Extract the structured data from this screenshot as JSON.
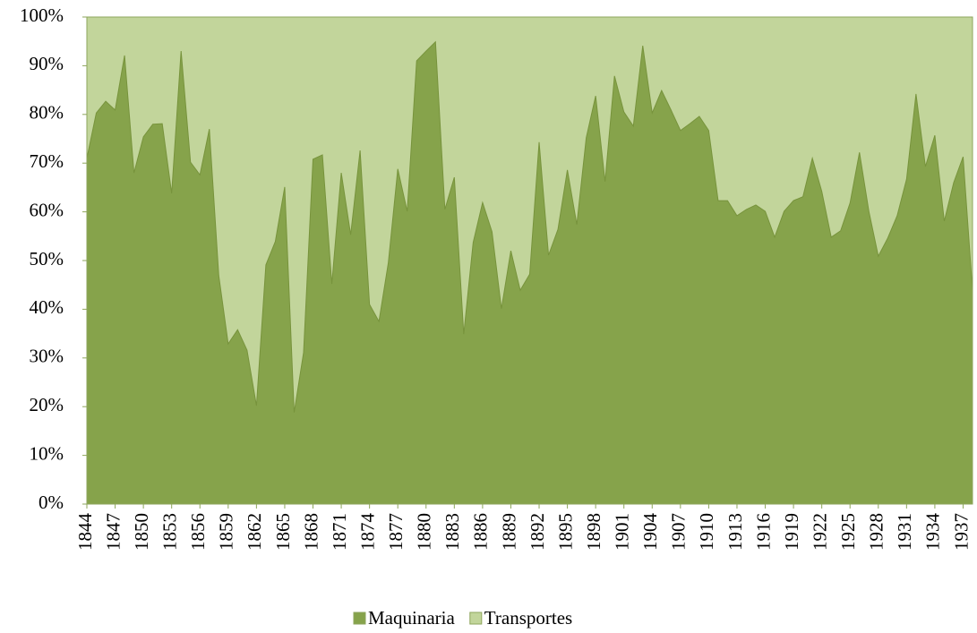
{
  "chart_data": {
    "type": "stacked-area-100",
    "x": [
      1844,
      1845,
      1846,
      1847,
      1848,
      1849,
      1850,
      1851,
      1852,
      1853,
      1854,
      1855,
      1856,
      1857,
      1858,
      1859,
      1860,
      1861,
      1862,
      1863,
      1864,
      1865,
      1866,
      1867,
      1868,
      1869,
      1870,
      1871,
      1872,
      1873,
      1874,
      1875,
      1876,
      1877,
      1878,
      1879,
      1880,
      1881,
      1882,
      1883,
      1884,
      1885,
      1886,
      1887,
      1888,
      1889,
      1890,
      1891,
      1892,
      1893,
      1894,
      1895,
      1896,
      1897,
      1898,
      1899,
      1900,
      1901,
      1902,
      1903,
      1904,
      1905,
      1906,
      1907,
      1908,
      1909,
      1910,
      1911,
      1912,
      1913,
      1914,
      1915,
      1916,
      1917,
      1918,
      1919,
      1920,
      1921,
      1922,
      1923,
      1924,
      1925,
      1926,
      1927,
      1928,
      1929,
      1930,
      1931,
      1932,
      1933,
      1934,
      1935,
      1936,
      1937,
      1938
    ],
    "series": [
      {
        "name": "Maquinaria",
        "color": "#86a34b",
        "values": [
          71,
          80.3,
          82.7,
          80.9,
          92.1,
          68,
          75.4,
          78,
          78.1,
          63.8,
          93,
          70.2,
          67.6,
          77,
          46.9,
          32.9,
          35.8,
          31.6,
          20.2,
          49.1,
          53.9,
          65.1,
          18.8,
          31.1,
          70.8,
          71.7,
          45.2,
          68,
          55.3,
          72.6,
          41,
          37.5,
          49.6,
          68.8,
          60.1,
          91,
          93,
          94.9,
          60.5,
          67.1,
          34.9,
          53.7,
          61.9,
          55.9,
          40.1,
          52,
          43.9,
          47.2,
          74.3,
          51.1,
          56.4,
          68.6,
          57.4,
          75.2,
          83.8,
          66.2,
          87.9,
          80.5,
          77.6,
          94.1,
          80.3,
          84.9,
          80.9,
          76.7,
          78.1,
          79.6,
          76.7,
          62.3,
          62.3,
          59.2,
          60.5,
          61.4,
          60.1,
          54.8,
          60.1,
          62.3,
          63.1,
          71,
          64.2,
          54.8,
          56.1,
          61.8,
          72.2,
          60.1,
          50.9,
          54.6,
          59.2,
          66.7,
          84.2,
          69.3,
          75.7,
          58.1,
          66,
          71.3,
          43.8
        ]
      },
      {
        "name": "Transportes",
        "color": "#c2d59b",
        "values": [
          29,
          19.7,
          17.3,
          19.1,
          7.9,
          32,
          24.6,
          22,
          21.9,
          36.2,
          7,
          29.8,
          32.4,
          23,
          53.1,
          67.1,
          64.2,
          68.4,
          79.8,
          50.9,
          46.1,
          34.9,
          81.2,
          68.9,
          29.2,
          28.3,
          54.8,
          32,
          44.7,
          27.4,
          59,
          62.5,
          50.4,
          31.2,
          39.9,
          9,
          7,
          5.1,
          39.5,
          32.9,
          65.1,
          46.3,
          38.1,
          44.1,
          59.9,
          48,
          56.1,
          52.8,
          25.7,
          48.9,
          43.6,
          31.4,
          42.6,
          24.8,
          16.2,
          33.8,
          12.1,
          19.5,
          22.4,
          5.9,
          19.7,
          15.1,
          19.1,
          23.3,
          21.9,
          20.4,
          23.3,
          37.7,
          37.7,
          40.8,
          39.5,
          38.6,
          39.9,
          45.2,
          39.9,
          37.7,
          36.9,
          29,
          35.8,
          45.2,
          43.9,
          38.2,
          27.8,
          39.9,
          49.1,
          45.4,
          40.8,
          33.3,
          15.8,
          30.7,
          24.3,
          41.9,
          34,
          28.7,
          56.2
        ]
      }
    ],
    "xlim": [
      1844,
      1938
    ],
    "xticks": [
      1844,
      1847,
      1850,
      1853,
      1856,
      1859,
      1862,
      1865,
      1868,
      1871,
      1874,
      1877,
      1880,
      1883,
      1886,
      1889,
      1892,
      1895,
      1898,
      1901,
      1904,
      1907,
      1910,
      1913,
      1916,
      1919,
      1922,
      1925,
      1928,
      1931,
      1934,
      1937
    ],
    "ylim": [
      0,
      100
    ],
    "yticks": [
      {
        "value": 0,
        "label": "0%"
      },
      {
        "value": 10,
        "label": "10%"
      },
      {
        "value": 20,
        "label": "20%"
      },
      {
        "value": 30,
        "label": "30%"
      },
      {
        "value": 40,
        "label": "40%"
      },
      {
        "value": 50,
        "label": "50%"
      },
      {
        "value": 60,
        "label": "60%"
      },
      {
        "value": 70,
        "label": "70%"
      },
      {
        "value": 80,
        "label": "80%"
      },
      {
        "value": 90,
        "label": "90%"
      },
      {
        "value": 100,
        "label": "100%"
      }
    ],
    "legend": "bottom"
  }
}
